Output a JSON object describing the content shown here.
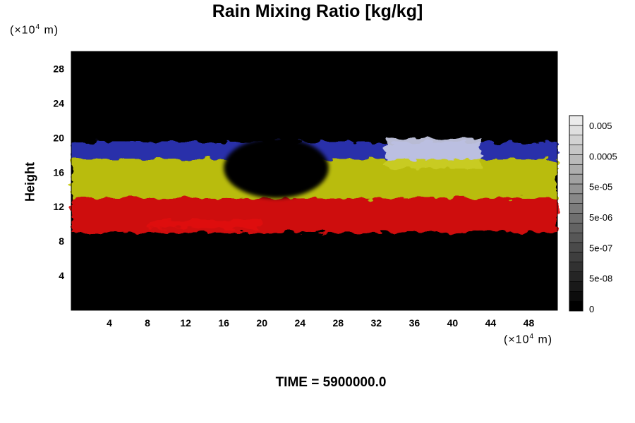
{
  "title": "Rain Mixing Ratio [kg/kg]",
  "y_unit": {
    "prefix": "(×10",
    "exp": "4",
    "suffix": " m)"
  },
  "x_unit": {
    "prefix": "(×10",
    "exp": "4",
    "suffix": " m)"
  },
  "time_label": "TIME = 5900000.0",
  "chart_data": {
    "type": "heatmap",
    "title": "Rain Mixing Ratio [kg/kg]",
    "xlabel": "",
    "ylabel": "Height",
    "xlim": [
      0,
      51
    ],
    "ylim": [
      0,
      30
    ],
    "x_ticks": [
      "4",
      "8",
      "12",
      "16",
      "20",
      "24",
      "28",
      "32",
      "36",
      "40",
      "44",
      "48"
    ],
    "y_ticks": [
      "4",
      "8",
      "12",
      "16",
      "20",
      "24",
      "28"
    ],
    "colorbar": {
      "labels": [
        "0.005",
        "0.0005",
        "5e-05",
        "5e-06",
        "5e-07",
        "5e-08",
        "0"
      ],
      "levels": 20
    },
    "layers": [
      {
        "name": "blue-upper",
        "color": "#2a35b8",
        "ymin": 17.5,
        "ymax": 19.5,
        "xmin": 0,
        "xmax": 51
      },
      {
        "name": "whitish-top",
        "color": "#c8cbe6",
        "ymin": 16.5,
        "ymax": 20.0,
        "xmin": 33,
        "xmax": 43
      },
      {
        "name": "yellow-mid",
        "color": "#c9cc10",
        "ymin": 13.0,
        "ymax": 17.5,
        "xmin": 0,
        "xmax": 51
      },
      {
        "name": "red-lower",
        "color": "#e01010",
        "ymin": 9.0,
        "ymax": 13.0,
        "xmin": 0,
        "xmax": 51
      },
      {
        "name": "red-trail",
        "color": "#e01010",
        "ymin": 9.5,
        "ymax": 10.5,
        "xmin": 8,
        "xmax": 20
      }
    ]
  }
}
